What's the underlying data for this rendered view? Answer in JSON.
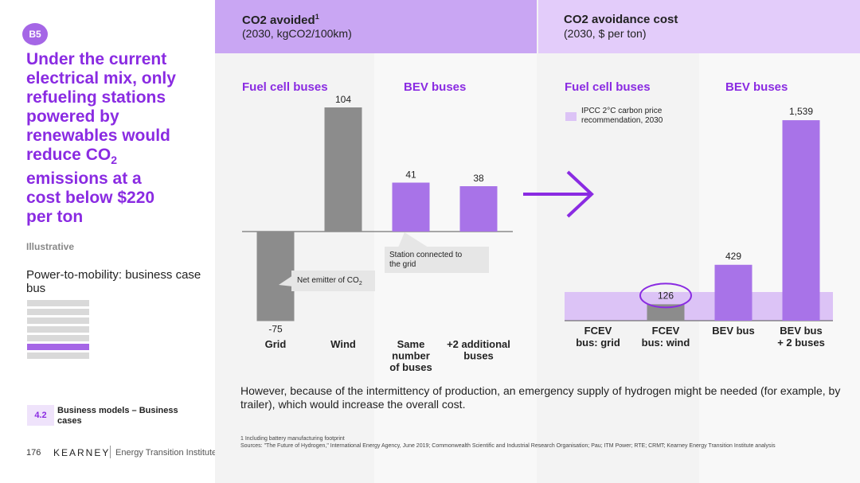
{
  "sidebar": {
    "badge": "B5",
    "headline_lines": [
      "Under the current",
      "electrical mix, only",
      "refueling stations",
      "powered by",
      "renewables would",
      "reduce CO",
      "emissions at a",
      "cost below $220",
      "per ton"
    ],
    "headline_sub": "2",
    "illustrative": "Illustrative",
    "subtitle": "Power-to-mobility: business case bus",
    "section_number": "4.2",
    "section_label": "Business models – Business cases",
    "page_number": "176",
    "brand": "KEARNEY",
    "brand_secondary": "Energy Transition Institute"
  },
  "left_panel": {
    "title": "CO2 avoided",
    "title_sup": "1",
    "subtitle": "(2030, kgCO2/100km)",
    "group_fuel_cell": "Fuel cell buses",
    "group_bev": "BEV buses",
    "callout_grid": "Net emitter of CO",
    "callout_grid_sub": "2",
    "callout_station_line1": "Station connected to",
    "callout_station_line2": "the grid"
  },
  "right_panel": {
    "title": "CO2 avoidance cost",
    "subtitle": "(2030, $ per ton)",
    "group_fuel_cell": "Fuel cell buses",
    "group_bev": "BEV buses",
    "legend_line1": "IPCC 2°C carbon price",
    "legend_line2": "recommendation, 2030"
  },
  "footer": {
    "text": "However, because of the intermittency of production, an emergency supply of hydrogen might be needed (for example, by trailer), which would increase the overall cost.",
    "footnote1": "1 Including battery manufacturing footprint",
    "footnote2": "Sources: \"The Future of Hydrogen,\" International Energy Agency, June 2019; Commonwealth Scientific and Industrial Research Organisation; Pau; ITM Power; RTE; CRMT; Kearney Energy Transition Institute analysis"
  },
  "colors": {
    "accent": "#8a2be2",
    "bar_purple": "#a873e8",
    "bar_gray": "#8c8c8c",
    "band": "#dcc3f6"
  },
  "chart_data": [
    {
      "type": "bar",
      "title": "CO2 avoided (2030, kgCO2/100km)",
      "categories": [
        [
          "Grid"
        ],
        [
          "Wind"
        ],
        [
          "Same",
          "number",
          "of buses"
        ],
        [
          "+2 additional",
          "buses"
        ]
      ],
      "values": [
        -75,
        104,
        41,
        38
      ],
      "value_labels": [
        "-75",
        "104",
        "41",
        "38"
      ],
      "groups": [
        "Fuel cell buses",
        "Fuel cell buses",
        "BEV buses",
        "BEV buses"
      ],
      "bar_colors": [
        "#8c8c8c",
        "#8c8c8c",
        "#a873e8",
        "#a873e8"
      ],
      "ylim": [
        -75,
        104
      ]
    },
    {
      "type": "bar",
      "title": "CO2 avoidance cost (2030, $ per ton)",
      "categories": [
        [
          "FCEV",
          "bus: grid"
        ],
        [
          "FCEV",
          "bus: wind"
        ],
        [
          "BEV bus"
        ],
        [
          "BEV bus",
          "+ 2 buses"
        ]
      ],
      "values": [
        null,
        126,
        429,
        1539
      ],
      "value_labels": [
        "",
        "126",
        "429",
        "1,539"
      ],
      "groups": [
        "Fuel cell buses",
        "Fuel cell buses",
        "BEV buses",
        "BEV buses"
      ],
      "bar_colors": [
        "#a873e8",
        "#8c8c8c",
        "#a873e8",
        "#a873e8"
      ],
      "reference_band": {
        "label": "IPCC 2°C carbon price recommendation, 2030",
        "value": 220
      },
      "highlight": "126",
      "ylim": [
        0,
        1539
      ]
    }
  ]
}
